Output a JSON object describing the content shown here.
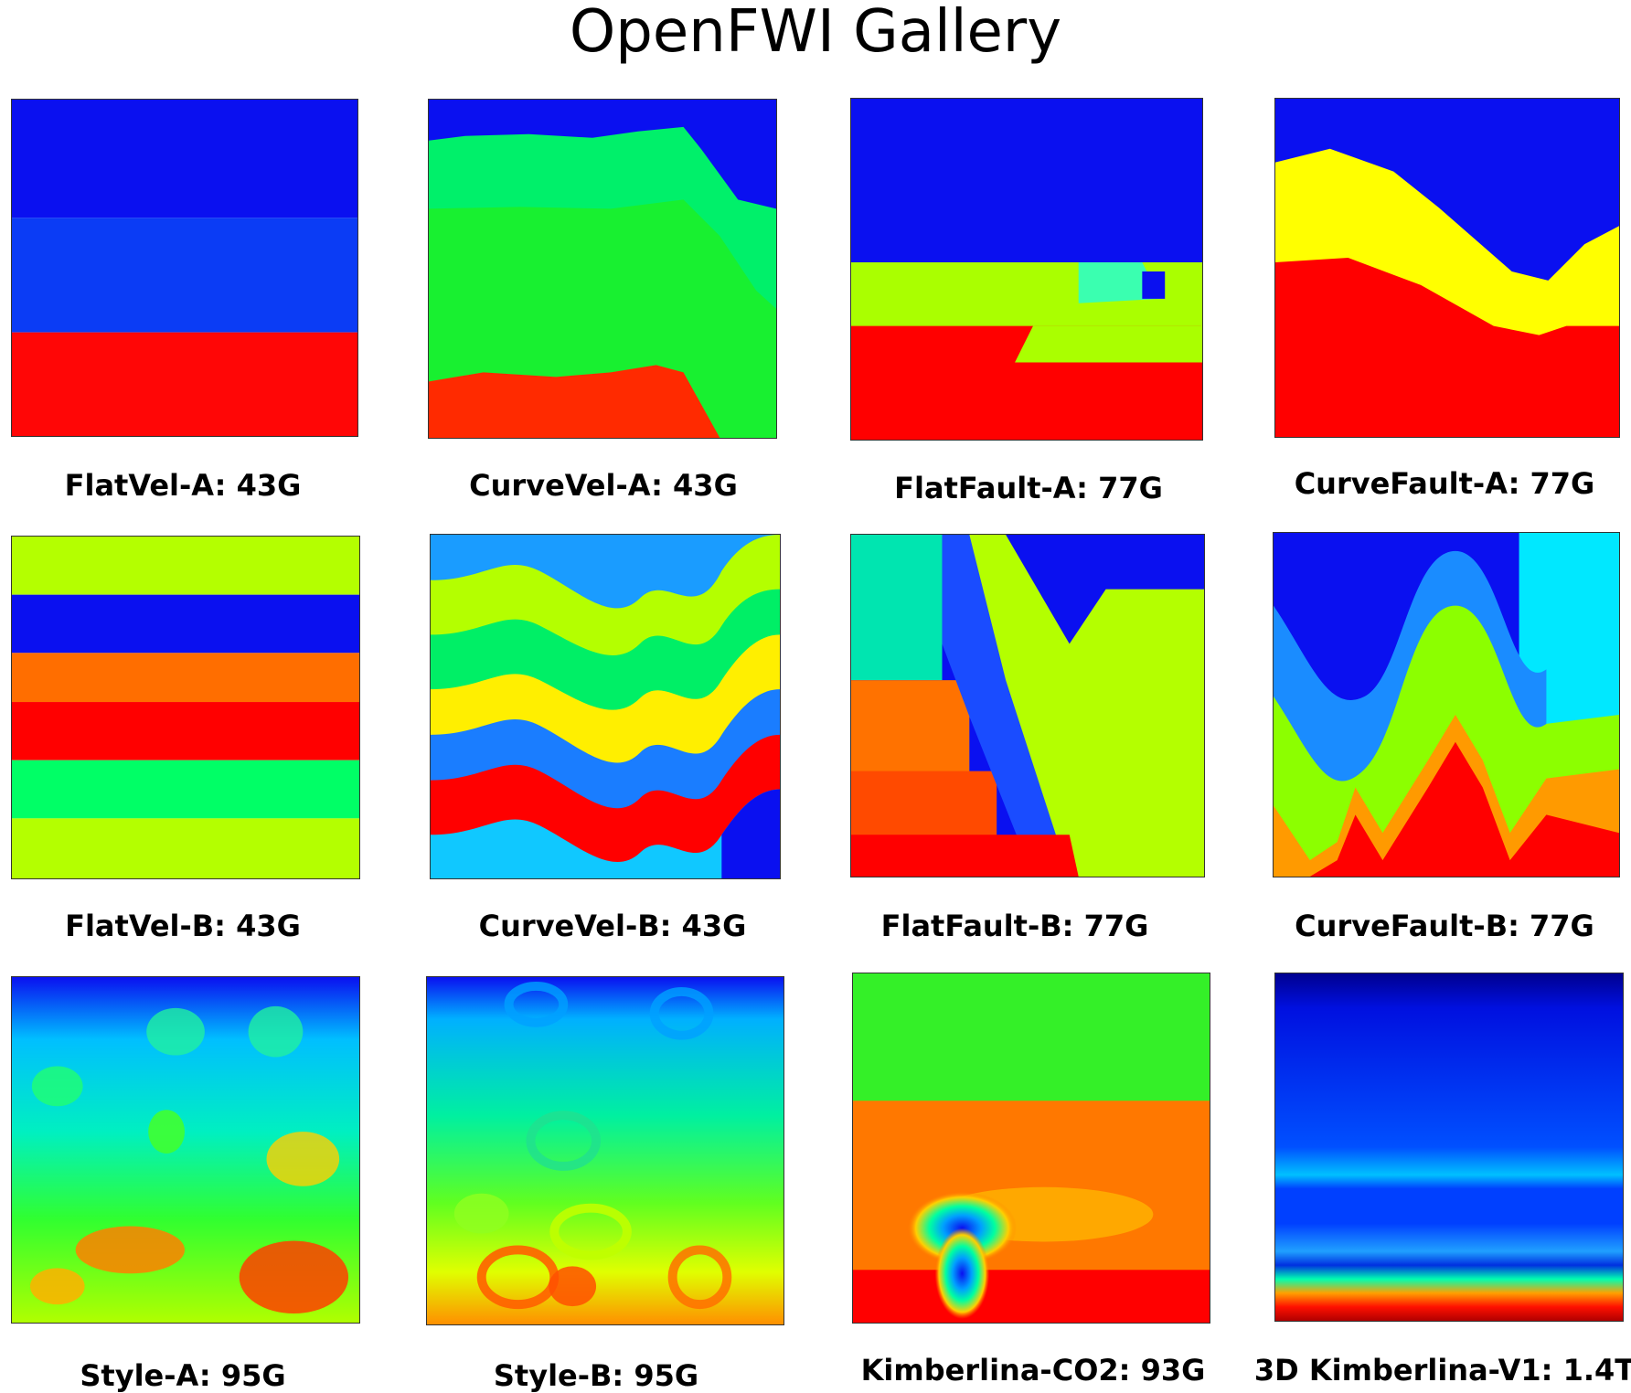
{
  "title": "OpenFWI Gallery",
  "colors": {
    "deep_blue": "#0000ee",
    "blue": "#0a1cff",
    "mid_blue": "#0055ff",
    "light_blue": "#0096ff",
    "cyan": "#00e5ff",
    "teal": "#00ffb0",
    "green": "#00ff55",
    "lime": "#b8ff00",
    "yellow": "#ffff00",
    "orange": "#ff7800",
    "red": "#ff0000"
  },
  "datasets": [
    {
      "name": "FlatVel-A",
      "size": "43G",
      "label": "FlatVel-A: 43G"
    },
    {
      "name": "CurveVel-A",
      "size": "43G",
      "label": "CurveVel-A: 43G"
    },
    {
      "name": "FlatFault-A",
      "size": "77G",
      "label": "FlatFault-A: 77G"
    },
    {
      "name": "CurveFault-A",
      "size": "77G",
      "label": "CurveFault-A: 77G"
    },
    {
      "name": "FlatVel-B",
      "size": "43G",
      "label": "FlatVel-B: 43G"
    },
    {
      "name": "CurveVel-B",
      "size": "43G",
      "label": "CurveVel-B: 43G"
    },
    {
      "name": "FlatFault-B",
      "size": "77G",
      "label": "FlatFault-B: 77G"
    },
    {
      "name": "CurveFault-B",
      "size": "77G",
      "label": "CurveFault-B: 77G"
    },
    {
      "name": "Style-A",
      "size": "95G",
      "label": "Style-A: 95G"
    },
    {
      "name": "Style-B",
      "size": "95G",
      "label": "Style-B: 95G"
    },
    {
      "name": "Kimberlina-CO2",
      "size": "93G",
      "label": "Kimberlina-CO2: 93G"
    },
    {
      "name": "3D Kimberlina-V1",
      "size": "1.4T",
      "label": "3D Kimberlina-V1: 1.4T"
    }
  ]
}
